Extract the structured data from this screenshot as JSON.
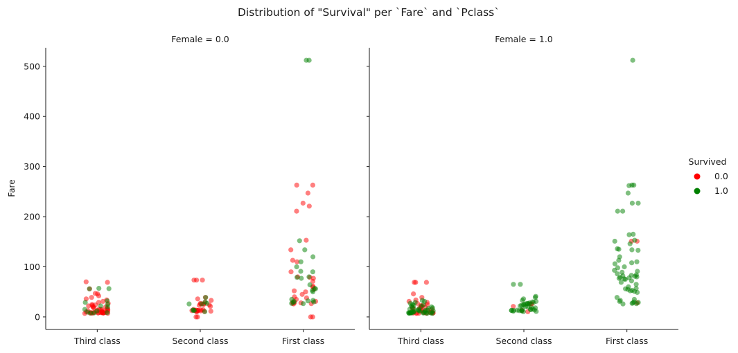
{
  "chart_data": {
    "type": "scatter",
    "title": "Distribution of \"Survival\" per `Fare` and `Pclass`",
    "ylabel": "Fare",
    "ylim": [
      -25,
      537
    ],
    "yticks": [
      0,
      100,
      200,
      300,
      400,
      500
    ],
    "categories": [
      "Third class",
      "Second class",
      "First class"
    ],
    "legend": {
      "title": "Survived",
      "placement": "right",
      "entries": [
        {
          "label": "0.0",
          "color": "#ff0000"
        },
        {
          "label": "1.0",
          "color": "#008000"
        }
      ]
    },
    "panels": [
      {
        "title": "Female = 0.0",
        "points": {
          "0.0": {
            "Third class": [
              7,
              7.25,
              7.5,
              7.75,
              7.8,
              7.9,
              8,
              8.05,
              8.05,
              8.1,
              8.3,
              8.5,
              8.7,
              9,
              9.2,
              9.5,
              9.8,
              10,
              10.5,
              11,
              11.5,
              12,
              12.5,
              13,
              14,
              14.5,
              15,
              15.5,
              16,
              17,
              18,
              19,
              20,
              21,
              22,
              23,
              24,
              25,
              27,
              29,
              31,
              34,
              36,
              39,
              42,
              46,
              47,
              56,
              69,
              70
            ],
            "Second class": [
              10.5,
              10.5,
              11,
              11.5,
              12,
              12.5,
              13,
              13,
              13,
              13,
              13.5,
              14,
              14.5,
              15,
              21,
              23,
              24,
              25,
              26,
              26,
              27,
              29,
              33,
              36,
              39,
              73.5,
              73.5,
              73.5,
              0,
              0
            ],
            "First class": [
              0,
              0,
              26,
              26.5,
              27,
              28,
              29,
              30,
              31,
              35,
              38,
              40,
              45,
              50,
              52,
              55,
              60,
              61,
              71,
              77,
              79,
              80,
              90,
              110,
              113,
              134,
              153,
              211,
              221,
              227,
              247,
              263,
              263
            ]
          },
          "1.0": {
            "Third class": [
              7.75,
              8,
              8.6,
              9.5,
              12,
              15,
              20,
              22,
              25,
              29,
              32,
              56,
              56.5,
              57
            ],
            "Second class": [
              10.5,
              13,
              13,
              14,
              26,
              26,
              27,
              30,
              39
            ],
            "First class": [
              26.5,
              27,
              29,
              30,
              31,
              32,
              33,
              35,
              50,
              53,
              56,
              57,
              64,
              77,
              79,
              80,
              90,
              91,
              100,
              110,
              120,
              134,
              152,
              512,
              512
            ]
          }
        }
      },
      {
        "title": "Female = 1.0",
        "points": {
          "0.0": {
            "Third class": [
              7,
              7.25,
              7.5,
              7.75,
              7.8,
              8,
              8.05,
              8.5,
              9,
              9.5,
              10,
              10.5,
              11,
              12,
              13,
              14,
              15,
              16,
              17,
              18,
              19,
              20,
              21,
              22,
              23,
              25,
              27,
              29,
              31,
              34,
              39,
              46,
              69,
              69,
              69
            ],
            "Second class": [
              10.5,
              13,
              21,
              26,
              26
            ],
            "First class": [
              28,
              151,
              151
            ]
          },
          "1.0": {
            "Third class": [
              7,
              7.25,
              7.5,
              7.75,
              7.75,
              7.8,
              7.9,
              8,
              8.05,
              8.1,
              8.2,
              8.5,
              9,
              9.2,
              9.5,
              9.8,
              10,
              10.5,
              11,
              11.5,
              12,
              12.5,
              13,
              13.5,
              14,
              15,
              15.5,
              16,
              17,
              18,
              19,
              20,
              21,
              22,
              23,
              24,
              25,
              27,
              29,
              31,
              33
            ],
            "Second class": [
              10.5,
              11,
              11.5,
              12,
              12.5,
              13,
              13,
              13,
              13,
              13.5,
              14,
              14.5,
              15,
              15.5,
              16,
              18,
              19,
              20,
              21,
              22,
              23,
              24,
              25,
              26,
              26,
              26.5,
              27,
              28,
              29,
              30,
              31,
              33,
              36,
              39,
              41,
              65,
              65
            ],
            "First class": [
              26,
              26.5,
              27,
              28,
              29,
              30,
              31,
              33,
              35,
              39,
              49,
              51,
              52,
              53,
              55,
              56,
              57,
              60,
              65,
              69,
              72,
              75,
              76,
              77,
              78,
              79,
              80,
              81,
              82,
              83,
              84,
              86,
              89,
              91,
              93,
              98,
              100,
              106,
              108,
              110,
              113,
              120,
              133,
              134,
              135,
              136,
              146,
              151,
              153,
              164,
              165,
              211,
              211,
              227,
              227,
              247,
              262,
              263,
              263,
              512
            ]
          }
        }
      }
    ]
  }
}
